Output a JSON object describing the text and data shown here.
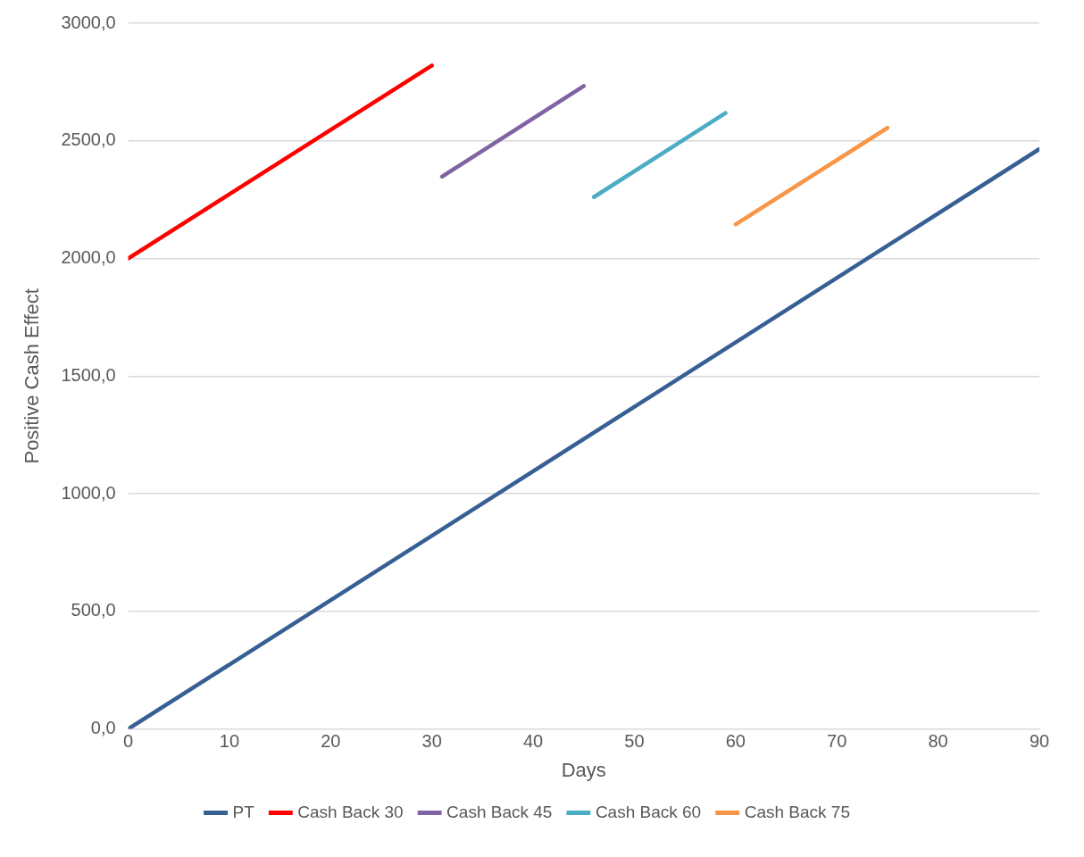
{
  "chart_data": {
    "type": "line",
    "xlabel": "Days",
    "ylabel": "Positive Cash Effect",
    "xlim": [
      0,
      90
    ],
    "xticks": [
      0,
      10,
      20,
      30,
      40,
      50,
      60,
      70,
      80,
      90
    ],
    "ylim": [
      0,
      3000
    ],
    "yticks": [
      {
        "value": 0,
        "label": "0,0"
      },
      {
        "value": 500,
        "label": "500,0"
      },
      {
        "value": 1000,
        "label": "1000,0"
      },
      {
        "value": 1500,
        "label": "1500,0"
      },
      {
        "value": 2000,
        "label": "2000,0"
      },
      {
        "value": 2500,
        "label": "2500,0"
      },
      {
        "value": 3000,
        "label": "3000,0"
      }
    ],
    "grid": "y",
    "legend": "bottom",
    "marker": "none",
    "line_style": "solid",
    "series": [
      {
        "name": "PT",
        "color": "#375f93",
        "x": [
          0,
          90
        ],
        "values": [
          0,
          2465
        ]
      },
      {
        "name": "Cash Back 30",
        "color": "#ff0000",
        "x": [
          0,
          30
        ],
        "values": [
          2000,
          2820
        ]
      },
      {
        "name": "Cash Back 45",
        "color": "#7f63a2",
        "x": [
          31,
          45
        ],
        "values": [
          2348,
          2733
        ]
      },
      {
        "name": "Cash Back 60",
        "color": "#4bacc6",
        "x": [
          46,
          59
        ],
        "values": [
          2261,
          2618
        ]
      },
      {
        "name": "Cash Back 75",
        "color": "#f79646",
        "x": [
          60,
          75
        ],
        "values": [
          2145,
          2555
        ]
      }
    ]
  }
}
